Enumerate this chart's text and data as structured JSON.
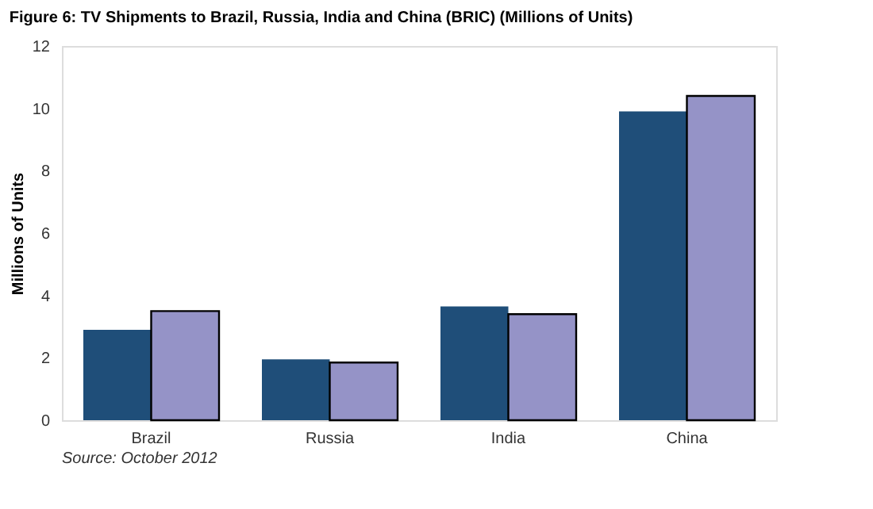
{
  "chart_data": {
    "type": "bar",
    "title": "Figure 6: TV Shipments to Brazil, Russia, India and China (BRIC) (Millions of Units)",
    "ylabel": "Millions of Units",
    "categories": [
      "Brazil",
      "Russia",
      "India",
      "China"
    ],
    "series": [
      {
        "color": "#1f4e79",
        "values": [
          2.9,
          1.95,
          3.65,
          9.9
        ]
      },
      {
        "color": "#9593c7",
        "values": [
          3.5,
          1.85,
          3.4,
          10.4
        ]
      }
    ],
    "ylim": [
      0,
      12
    ],
    "yticks": [
      0,
      2,
      4,
      6,
      8,
      10,
      12
    ],
    "grid": false,
    "legend": false,
    "annotations": [
      "Source: October 2012"
    ]
  }
}
